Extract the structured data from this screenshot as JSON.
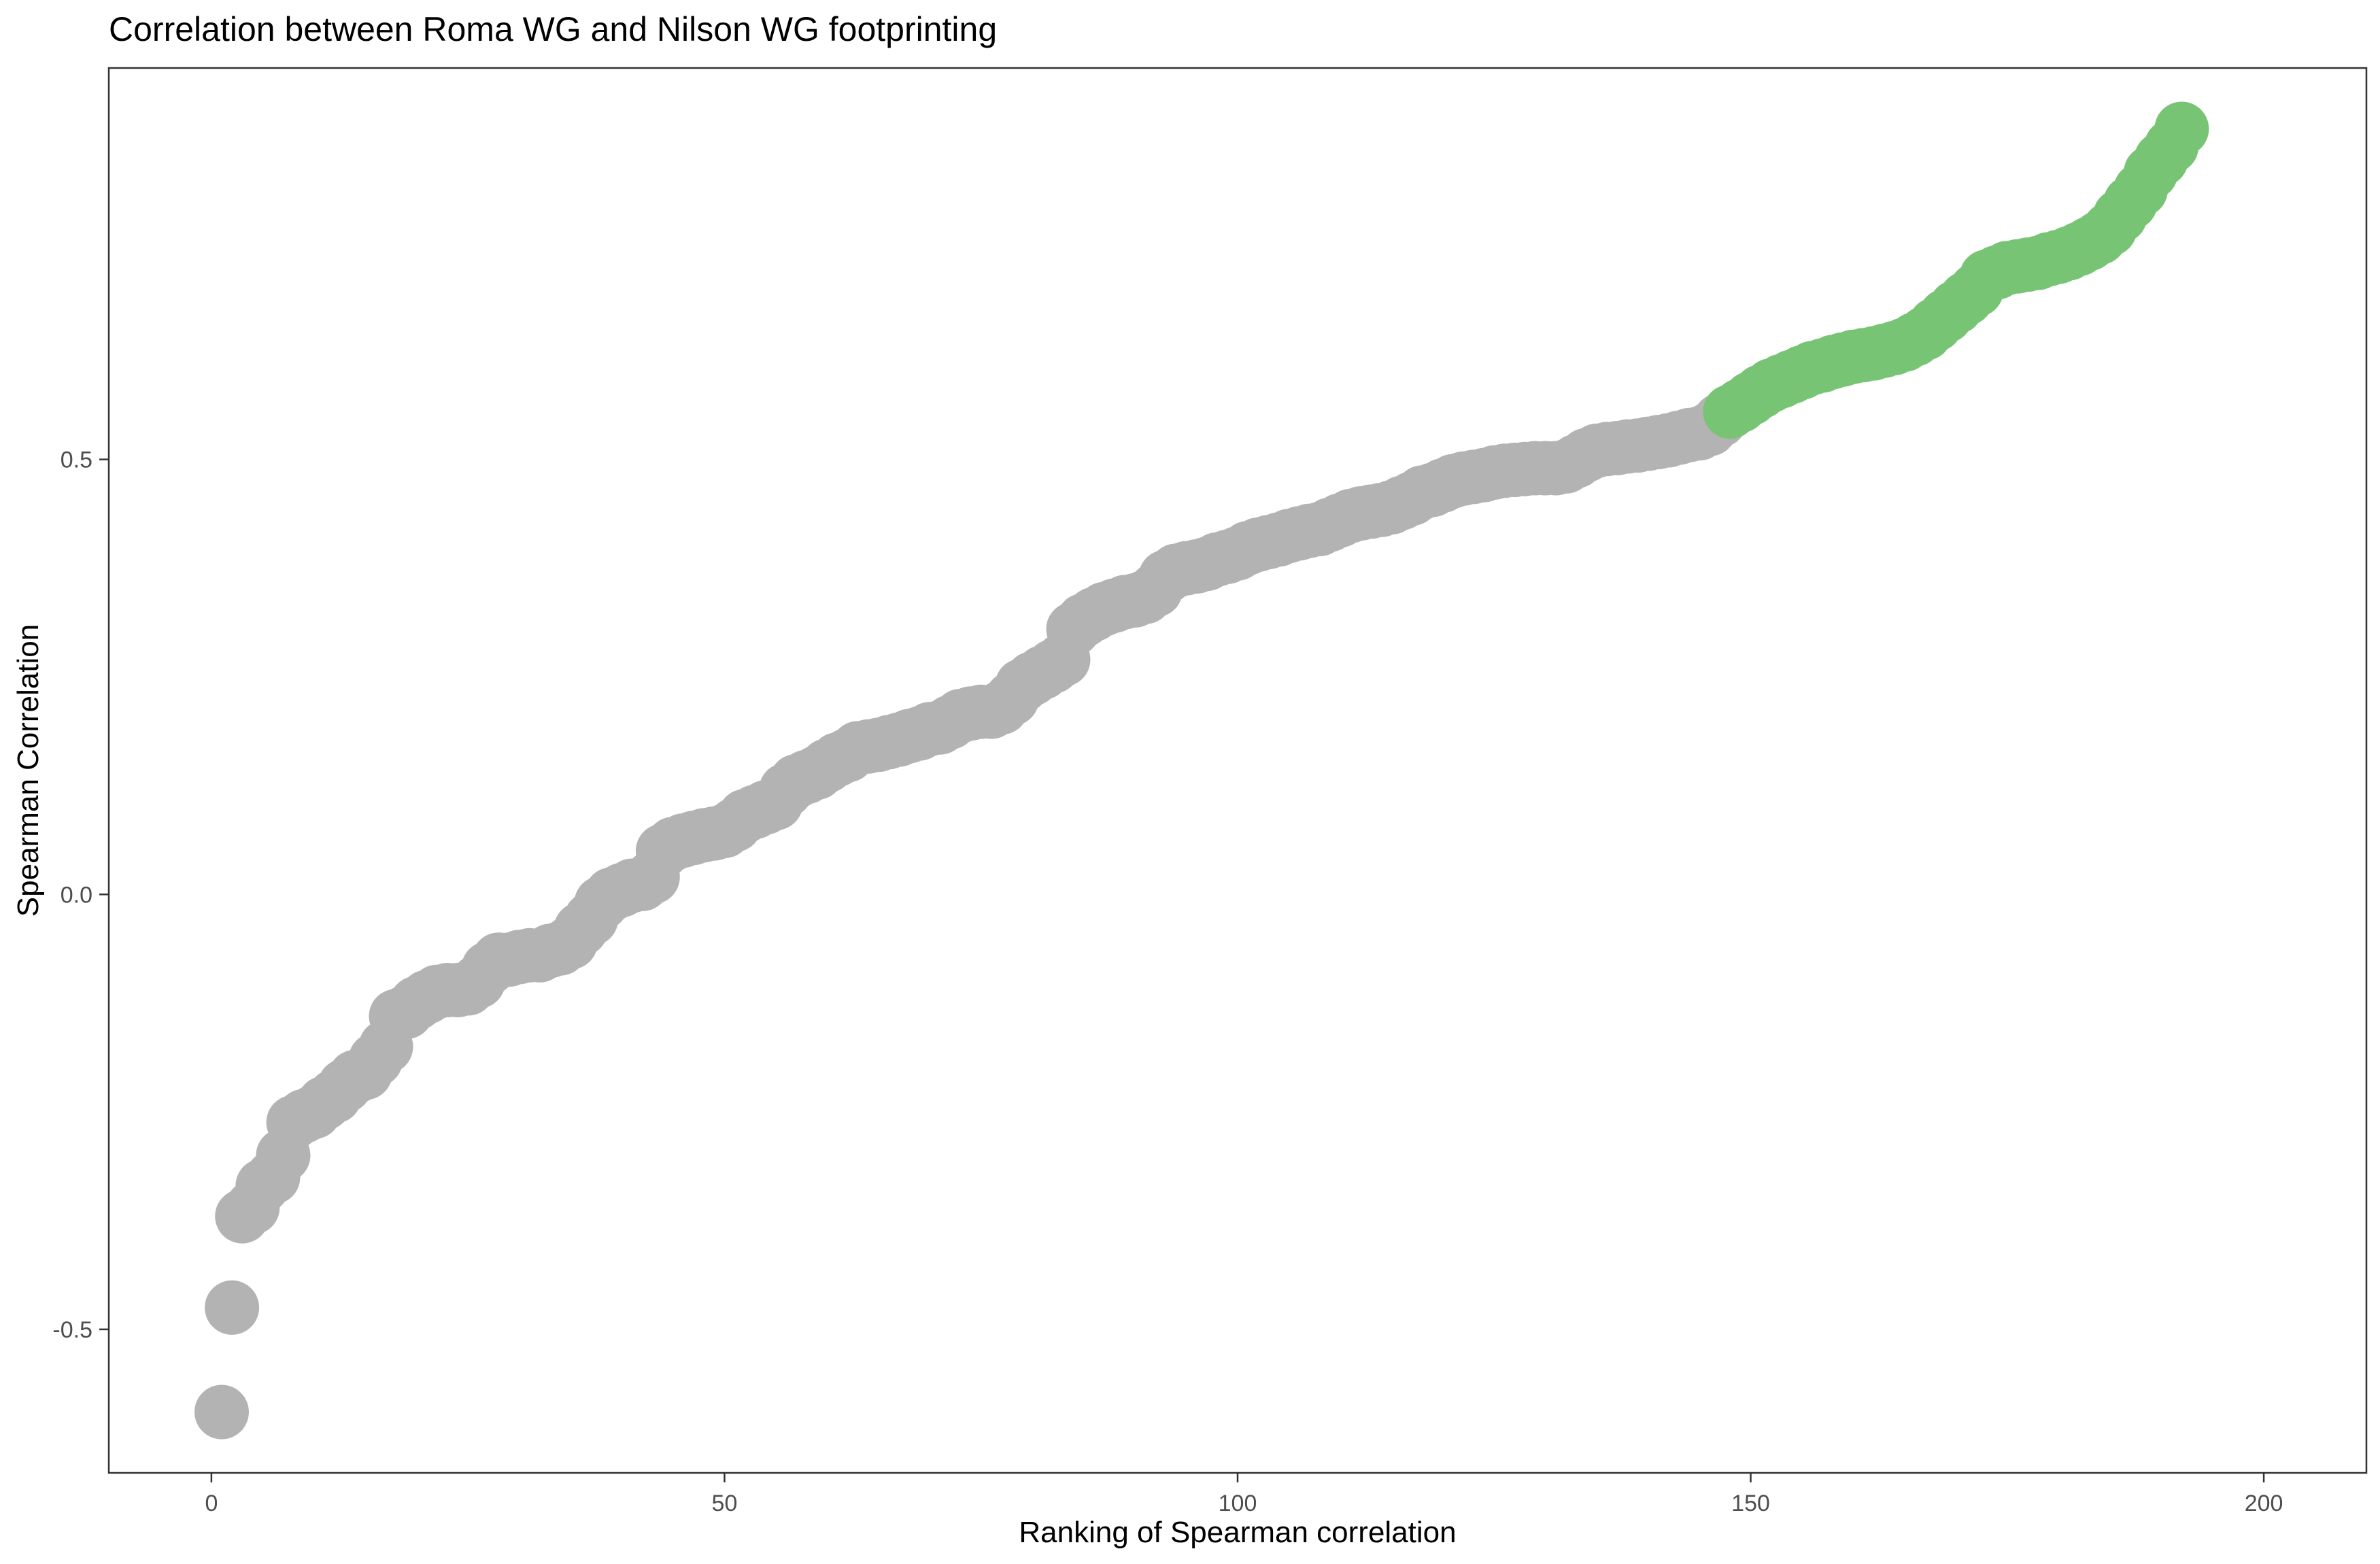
{
  "colors": {
    "low": "#b3b3b3",
    "high": "#77c474",
    "panel_border": "#333333",
    "ticks": "#333333",
    "tick_text": "#4d4d4d"
  },
  "chart_data": {
    "type": "scatter",
    "title": "Correlation between Roma WG and Nilson WG footprinting",
    "xlabel": "Ranking of Spearman correlation",
    "ylabel": "Spearman Correlation",
    "xlim": [
      -10,
      210
    ],
    "ylim": [
      -0.665,
      0.95
    ],
    "x_ticks": [
      0,
      50,
      100,
      150,
      200
    ],
    "x_tick_labels": [
      "0",
      "50",
      "100",
      "150",
      "200"
    ],
    "y_ticks": [
      -0.5,
      0.0,
      0.5
    ],
    "y_tick_labels": [
      "-0.5",
      "0.0",
      "0.5"
    ],
    "grid": false,
    "legend": "none",
    "highlight_from_rank": 148,
    "series": [
      {
        "values": [
          [
            1,
            -0.595
          ],
          [
            2,
            -0.475
          ],
          [
            3,
            -0.37
          ],
          [
            4,
            -0.36
          ],
          [
            5,
            -0.335
          ],
          [
            6,
            -0.325
          ],
          [
            7,
            -0.3
          ],
          [
            8,
            -0.262
          ],
          [
            9,
            -0.255
          ],
          [
            10,
            -0.25
          ],
          [
            11,
            -0.24
          ],
          [
            12,
            -0.232
          ],
          [
            13,
            -0.22
          ],
          [
            14,
            -0.21
          ],
          [
            15,
            -0.205
          ],
          [
            16,
            -0.19
          ],
          [
            17,
            -0.175
          ],
          [
            18,
            -0.14
          ],
          [
            19,
            -0.135
          ],
          [
            20,
            -0.125
          ],
          [
            21,
            -0.118
          ],
          [
            22,
            -0.112
          ],
          [
            23,
            -0.11
          ],
          [
            24,
            -0.11
          ],
          [
            25,
            -0.108
          ],
          [
            26,
            -0.1
          ],
          [
            27,
            -0.085
          ],
          [
            28,
            -0.075
          ],
          [
            29,
            -0.075
          ],
          [
            30,
            -0.072
          ],
          [
            31,
            -0.07
          ],
          [
            32,
            -0.07
          ],
          [
            33,
            -0.065
          ],
          [
            34,
            -0.062
          ],
          [
            35,
            -0.055
          ],
          [
            36,
            -0.04
          ],
          [
            37,
            -0.028
          ],
          [
            38,
            -0.01
          ],
          [
            39,
            0.0
          ],
          [
            40,
            0.005
          ],
          [
            41,
            0.01
          ],
          [
            42,
            0.012
          ],
          [
            43,
            0.02
          ],
          [
            44,
            0.05
          ],
          [
            45,
            0.058
          ],
          [
            46,
            0.062
          ],
          [
            47,
            0.065
          ],
          [
            48,
            0.068
          ],
          [
            49,
            0.07
          ],
          [
            50,
            0.073
          ],
          [
            51,
            0.08
          ],
          [
            52,
            0.09
          ],
          [
            53,
            0.095
          ],
          [
            54,
            0.1
          ],
          [
            55,
            0.105
          ],
          [
            56,
            0.12
          ],
          [
            57,
            0.13
          ],
          [
            58,
            0.135
          ],
          [
            59,
            0.14
          ],
          [
            60,
            0.148
          ],
          [
            61,
            0.155
          ],
          [
            62,
            0.16
          ],
          [
            63,
            0.168
          ],
          [
            64,
            0.17
          ],
          [
            65,
            0.172
          ],
          [
            66,
            0.175
          ],
          [
            67,
            0.178
          ],
          [
            68,
            0.182
          ],
          [
            69,
            0.185
          ],
          [
            70,
            0.19
          ],
          [
            71,
            0.192
          ],
          [
            72,
            0.198
          ],
          [
            73,
            0.205
          ],
          [
            74,
            0.208
          ],
          [
            75,
            0.21
          ],
          [
            76,
            0.21
          ],
          [
            77,
            0.215
          ],
          [
            78,
            0.225
          ],
          [
            79,
            0.24
          ],
          [
            80,
            0.248
          ],
          [
            81,
            0.255
          ],
          [
            82,
            0.262
          ],
          [
            83,
            0.27
          ],
          [
            84,
            0.305
          ],
          [
            85,
            0.315
          ],
          [
            86,
            0.322
          ],
          [
            87,
            0.328
          ],
          [
            88,
            0.332
          ],
          [
            89,
            0.336
          ],
          [
            90,
            0.338
          ],
          [
            91,
            0.342
          ],
          [
            92,
            0.35
          ],
          [
            93,
            0.365
          ],
          [
            94,
            0.372
          ],
          [
            95,
            0.375
          ],
          [
            96,
            0.377
          ],
          [
            97,
            0.38
          ],
          [
            98,
            0.385
          ],
          [
            99,
            0.388
          ],
          [
            100,
            0.392
          ],
          [
            101,
            0.398
          ],
          [
            102,
            0.402
          ],
          [
            103,
            0.405
          ],
          [
            104,
            0.408
          ],
          [
            105,
            0.412
          ],
          [
            106,
            0.415
          ],
          [
            107,
            0.418
          ],
          [
            108,
            0.42
          ],
          [
            109,
            0.425
          ],
          [
            110,
            0.43
          ],
          [
            111,
            0.435
          ],
          [
            112,
            0.438
          ],
          [
            113,
            0.44
          ],
          [
            114,
            0.442
          ],
          [
            115,
            0.445
          ],
          [
            116,
            0.45
          ],
          [
            117,
            0.455
          ],
          [
            118,
            0.462
          ],
          [
            119,
            0.465
          ],
          [
            120,
            0.47
          ],
          [
            121,
            0.475
          ],
          [
            122,
            0.478
          ],
          [
            123,
            0.48
          ],
          [
            124,
            0.482
          ],
          [
            125,
            0.485
          ],
          [
            126,
            0.487
          ],
          [
            127,
            0.488
          ],
          [
            128,
            0.489
          ],
          [
            129,
            0.49
          ],
          [
            130,
            0.49
          ],
          [
            131,
            0.49
          ],
          [
            132,
            0.492
          ],
          [
            133,
            0.498
          ],
          [
            134,
            0.505
          ],
          [
            135,
            0.51
          ],
          [
            136,
            0.512
          ],
          [
            137,
            0.513
          ],
          [
            138,
            0.515
          ],
          [
            139,
            0.516
          ],
          [
            140,
            0.518
          ],
          [
            141,
            0.52
          ],
          [
            142,
            0.522
          ],
          [
            143,
            0.525
          ],
          [
            144,
            0.528
          ],
          [
            145,
            0.53
          ],
          [
            146,
            0.535
          ],
          [
            147,
            0.545
          ],
          [
            148,
            0.555
          ],
          [
            149,
            0.562
          ],
          [
            150,
            0.57
          ],
          [
            151,
            0.578
          ],
          [
            152,
            0.585
          ],
          [
            153,
            0.59
          ],
          [
            154,
            0.595
          ],
          [
            155,
            0.6
          ],
          [
            156,
            0.605
          ],
          [
            157,
            0.608
          ],
          [
            158,
            0.612
          ],
          [
            159,
            0.615
          ],
          [
            160,
            0.618
          ],
          [
            161,
            0.62
          ],
          [
            162,
            0.622
          ],
          [
            163,
            0.625
          ],
          [
            164,
            0.628
          ],
          [
            165,
            0.632
          ],
          [
            166,
            0.638
          ],
          [
            167,
            0.645
          ],
          [
            168,
            0.655
          ],
          [
            169,
            0.665
          ],
          [
            170,
            0.675
          ],
          [
            171,
            0.685
          ],
          [
            172,
            0.695
          ],
          [
            173,
            0.71
          ],
          [
            174,
            0.715
          ],
          [
            175,
            0.72
          ],
          [
            176,
            0.722
          ],
          [
            177,
            0.724
          ],
          [
            178,
            0.726
          ],
          [
            179,
            0.73
          ],
          [
            180,
            0.733
          ],
          [
            181,
            0.737
          ],
          [
            182,
            0.742
          ],
          [
            183,
            0.748
          ],
          [
            184,
            0.755
          ],
          [
            185,
            0.765
          ],
          [
            186,
            0.78
          ],
          [
            187,
            0.795
          ],
          [
            188,
            0.81
          ],
          [
            189,
            0.83
          ],
          [
            190,
            0.845
          ],
          [
            191,
            0.86
          ],
          [
            192,
            0.88
          ]
        ]
      }
    ]
  }
}
